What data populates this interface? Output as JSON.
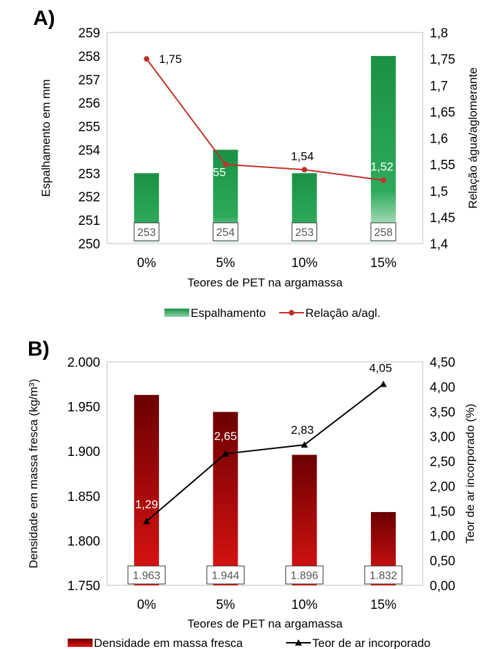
{
  "chart_data": [
    {
      "panel_label": "A)",
      "type": "bar+line",
      "categories": [
        "0%",
        "5%",
        "10%",
        "15%"
      ],
      "xlabel": "Teores de PET na argamassa",
      "y_left": {
        "label": "Espalhamento em mm",
        "ylim": [
          250,
          259
        ],
        "ticks": [
          "250",
          "251",
          "252",
          "253",
          "254",
          "255",
          "256",
          "257",
          "258",
          "259"
        ]
      },
      "y_right": {
        "label": "Relação água/aglomerante",
        "ylim": [
          1.4,
          1.8
        ],
        "ticks": [
          "1,4",
          "1,45",
          "1,5",
          "1,55",
          "1,6",
          "1,65",
          "1,7",
          "1,75",
          "1,8"
        ]
      },
      "series": [
        {
          "name": "Espalhamento",
          "type": "bar",
          "axis": "left",
          "values": [
            253,
            254,
            253,
            258
          ],
          "labels": [
            "253",
            "254",
            "253",
            "258"
          ],
          "color": "#1e9a48"
        },
        {
          "name": "Relação a/agl.",
          "type": "line",
          "axis": "right",
          "values": [
            1.75,
            1.55,
            1.54,
            1.52
          ],
          "labels": [
            "1,75",
            "1,55",
            "1,54",
            "1,52"
          ],
          "color": "#c0302c",
          "marker": "circle"
        }
      ],
      "grid": false,
      "legend": "bottom"
    },
    {
      "panel_label": "B)",
      "type": "bar+line",
      "categories": [
        "0%",
        "5%",
        "10%",
        "15%"
      ],
      "xlabel": "Teores de PET na argamassa",
      "y_left": {
        "label": "Densidade em massa fresca (kg/m³)",
        "ylim": [
          1750,
          2000
        ],
        "ticks": [
          "1.750",
          "1.800",
          "1.850",
          "1.900",
          "1.950",
          "2.000"
        ]
      },
      "y_right": {
        "label": "Teor de ar incorporado (%)",
        "ylim": [
          0,
          4.5
        ],
        "ticks": [
          "0,00",
          "0,50",
          "1,00",
          "1,50",
          "2,00",
          "2,50",
          "3,00",
          "3,50",
          "4,00",
          "4,50"
        ]
      },
      "series": [
        {
          "name": "Densidade em massa fresca",
          "type": "bar",
          "axis": "left",
          "values": [
            1963,
            1944,
            1896,
            1832
          ],
          "labels": [
            "1.963",
            "1.944",
            "1.896",
            "1.832"
          ],
          "color": "#b01010"
        },
        {
          "name": "Teor de ar incorporado",
          "type": "line",
          "axis": "right",
          "values": [
            1.29,
            2.65,
            2.83,
            4.05
          ],
          "labels": [
            "1,29",
            "2,65",
            "2,83",
            "4,05"
          ],
          "color": "#000000",
          "marker": "triangle"
        }
      ],
      "grid": false,
      "legend": "bottom"
    }
  ]
}
